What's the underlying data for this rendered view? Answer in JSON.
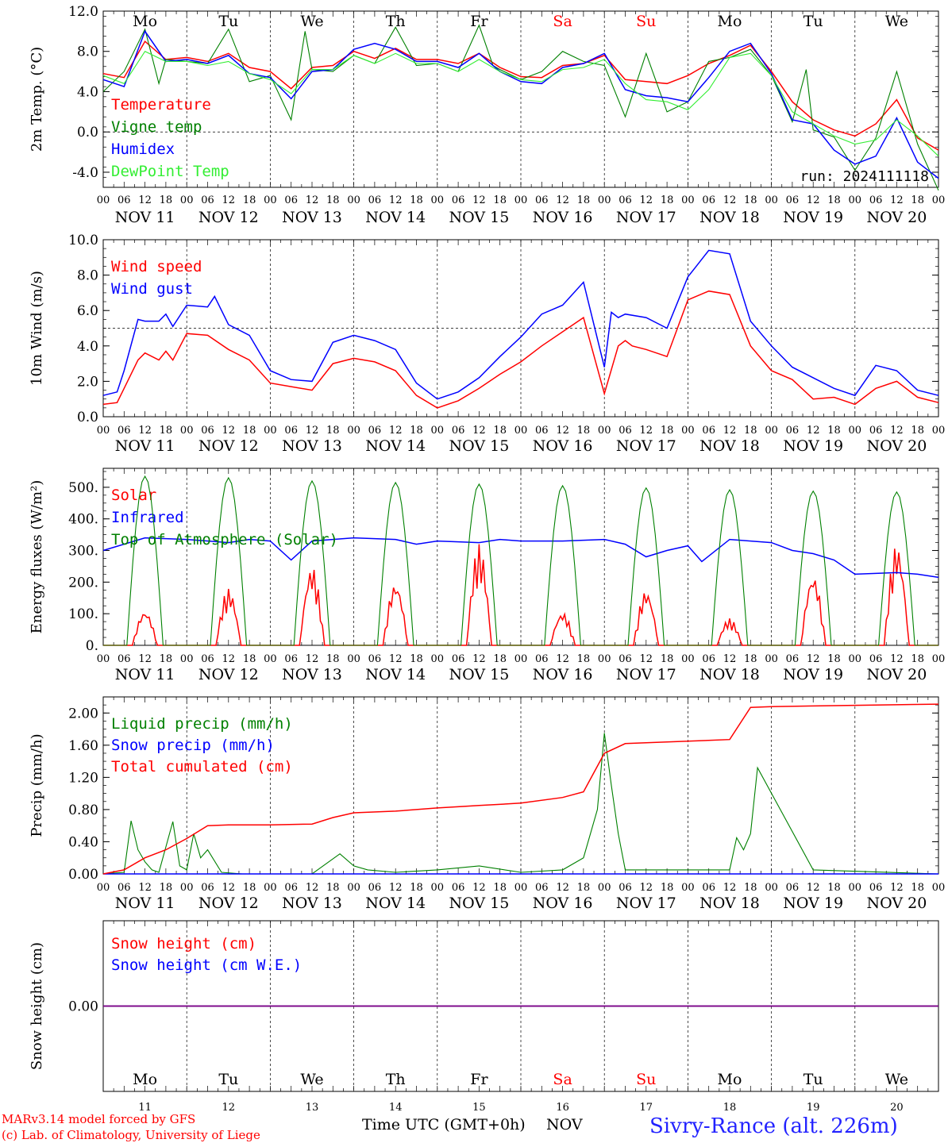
{
  "days": [
    {
      "abbr": "Mo",
      "date": "NOV 11",
      "num": "11",
      "weekend": false
    },
    {
      "abbr": "Tu",
      "date": "NOV 12",
      "num": "12",
      "weekend": false
    },
    {
      "abbr": "We",
      "date": "NOV 13",
      "num": "13",
      "weekend": false
    },
    {
      "abbr": "Th",
      "date": "NOV 14",
      "num": "14",
      "weekend": false
    },
    {
      "abbr": "Fr",
      "date": "NOV 15",
      "num": "15",
      "weekend": false
    },
    {
      "abbr": "Sa",
      "date": "NOV 16",
      "num": "16",
      "weekend": true
    },
    {
      "abbr": "Su",
      "date": "NOV 17",
      "num": "17",
      "weekend": true
    },
    {
      "abbr": "Mo",
      "date": "NOV 18",
      "num": "18",
      "weekend": false
    },
    {
      "abbr": "Tu",
      "date": "NOV 19",
      "num": "19",
      "weekend": false
    },
    {
      "abbr": "We",
      "date": "NOV 20",
      "num": "20",
      "weekend": false
    }
  ],
  "hour_ticks": [
    "00",
    "06",
    "12",
    "18"
  ],
  "end_tick": "00",
  "run_label": "run: 2024111118",
  "footer": {
    "credit1": "MARv3.14 model forced by GFS",
    "credit2": "(c) Lab. of Climatology, University of Liege",
    "xlabel": "Time UTC (GMT+0h)",
    "month": "NOV",
    "station": "Sivry-Rance (alt. 226m)"
  },
  "colors": {
    "red": "#ff0000",
    "green": "#008000",
    "blue": "#0000ff",
    "lightgreen": "#33ee33",
    "purple": "#800080"
  },
  "chart_data": [
    {
      "type": "line",
      "ylabel": "2m Temp. (°C)",
      "ylim": [
        -5.5,
        12.0
      ],
      "yticks": [
        -4.0,
        0.0,
        4.0,
        8.0,
        12.0
      ],
      "ytick_labels": [
        "-4.0",
        "0.0",
        "4.0",
        "8.0",
        "12.0"
      ],
      "reference_line": 0.0,
      "x_unit": "hours since NOV 11 00 UTC",
      "series": [
        {
          "name": "Temperature",
          "color": "red",
          "x": [
            0,
            6,
            12,
            18,
            24,
            30,
            36,
            42,
            48,
            54,
            60,
            66,
            72,
            78,
            84,
            90,
            96,
            102,
            108,
            114,
            120,
            126,
            132,
            138,
            144,
            150,
            156,
            162,
            168,
            174,
            180,
            186,
            192,
            198,
            204,
            210,
            216,
            222,
            228,
            234,
            240
          ],
          "values": [
            5.8,
            5.4,
            9.0,
            7.2,
            7.4,
            7.0,
            7.8,
            6.4,
            6.0,
            4.3,
            6.4,
            6.6,
            8.0,
            7.3,
            8.3,
            7.2,
            7.2,
            6.8,
            7.8,
            6.4,
            5.5,
            5.4,
            6.6,
            6.8,
            7.6,
            5.2,
            5.0,
            4.8,
            5.6,
            6.8,
            7.6,
            8.6,
            6.0,
            3.0,
            1.2,
            0.2,
            -0.4,
            0.8,
            3.2,
            -0.6,
            -1.8
          ]
        },
        {
          "name": "Vigne temp",
          "color": "green",
          "x": [
            0,
            6,
            12,
            16,
            18,
            24,
            30,
            36,
            42,
            48,
            54,
            58,
            60,
            66,
            72,
            78,
            84,
            90,
            96,
            102,
            108,
            112,
            114,
            120,
            126,
            132,
            138,
            144,
            150,
            156,
            162,
            168,
            174,
            180,
            186,
            192,
            198,
            202,
            204,
            210,
            216,
            222,
            228,
            234,
            240
          ],
          "values": [
            4.0,
            6.0,
            10.2,
            4.8,
            7.2,
            7.0,
            6.8,
            10.2,
            5.0,
            5.6,
            1.2,
            10.0,
            6.2,
            6.0,
            7.6,
            6.8,
            10.4,
            6.6,
            6.8,
            6.0,
            10.6,
            6.6,
            6.2,
            5.2,
            6.0,
            8.0,
            7.0,
            6.6,
            1.5,
            7.8,
            2.0,
            3.0,
            7.0,
            7.4,
            8.2,
            5.6,
            1.0,
            6.2,
            0.2,
            -0.5,
            -3.8,
            -0.6,
            6.0,
            -1.2,
            -5.8
          ]
        },
        {
          "name": "Humidex",
          "color": "blue",
          "x": [
            0,
            6,
            12,
            18,
            24,
            30,
            36,
            42,
            48,
            54,
            60,
            66,
            72,
            78,
            84,
            90,
            96,
            102,
            108,
            114,
            120,
            126,
            132,
            138,
            144,
            150,
            156,
            162,
            168,
            174,
            180,
            186,
            192,
            198,
            204,
            210,
            216,
            222,
            228,
            234,
            240
          ],
          "values": [
            5.2,
            4.5,
            10.0,
            7.0,
            7.2,
            6.8,
            7.6,
            5.8,
            5.4,
            3.3,
            6.0,
            6.2,
            8.2,
            8.8,
            8.2,
            7.0,
            7.0,
            6.4,
            7.8,
            6.0,
            5.0,
            4.8,
            6.4,
            6.8,
            7.8,
            4.2,
            3.6,
            3.4,
            3.0,
            5.4,
            8.0,
            8.8,
            5.8,
            1.2,
            0.8,
            -1.8,
            -3.2,
            -2.4,
            1.4,
            -3.0,
            -4.6
          ]
        },
        {
          "name": "DewPoint Temp",
          "color": "lightgreen",
          "x": [
            0,
            6,
            12,
            18,
            24,
            30,
            36,
            42,
            48,
            54,
            60,
            66,
            72,
            78,
            84,
            90,
            96,
            102,
            108,
            114,
            120,
            126,
            132,
            138,
            144,
            150,
            156,
            162,
            168,
            174,
            180,
            186,
            192,
            198,
            204,
            210,
            216,
            222,
            228,
            234,
            240
          ],
          "values": [
            5.6,
            4.8,
            8.0,
            7.0,
            7.0,
            6.6,
            7.0,
            5.8,
            5.2,
            3.8,
            6.2,
            6.2,
            7.6,
            6.8,
            7.8,
            6.8,
            6.8,
            6.0,
            7.2,
            6.0,
            5.2,
            5.0,
            6.2,
            6.4,
            7.2,
            4.8,
            3.2,
            3.0,
            2.2,
            4.2,
            7.4,
            7.8,
            5.6,
            2.0,
            0.8,
            -0.4,
            -1.2,
            -0.8,
            1.2,
            -0.4,
            -2.4
          ]
        }
      ]
    },
    {
      "type": "line",
      "ylabel": "10m Wind (m/s)",
      "ylim": [
        0.0,
        10.0
      ],
      "yticks": [
        0.0,
        2.0,
        4.0,
        6.0,
        8.0,
        10.0
      ],
      "ytick_labels": [
        "0.0",
        "2.0",
        "4.0",
        "6.0",
        "8.0",
        "10.0"
      ],
      "reference_line": 5.0,
      "series": [
        {
          "name": "Wind speed",
          "color": "red",
          "x": [
            0,
            4,
            6,
            10,
            12,
            16,
            18,
            20,
            24,
            30,
            36,
            42,
            48,
            54,
            60,
            66,
            72,
            78,
            84,
            90,
            96,
            102,
            108,
            114,
            120,
            126,
            132,
            138,
            144,
            148,
            150,
            152,
            156,
            162,
            168,
            174,
            180,
            186,
            192,
            198,
            204,
            210,
            216,
            222,
            228,
            234,
            240
          ],
          "values": [
            0.7,
            0.8,
            1.6,
            3.2,
            3.6,
            3.2,
            3.7,
            3.2,
            4.7,
            4.6,
            3.8,
            3.2,
            1.9,
            1.7,
            1.5,
            3.0,
            3.3,
            3.1,
            2.6,
            1.2,
            0.5,
            0.9,
            1.6,
            2.4,
            3.1,
            4.0,
            4.8,
            5.6,
            1.3,
            4.0,
            4.3,
            4.0,
            3.8,
            3.4,
            6.6,
            7.1,
            6.9,
            4.0,
            2.6,
            2.1,
            1.0,
            1.1,
            0.7,
            1.6,
            2.0,
            1.1,
            0.8
          ]
        },
        {
          "name": "Wind gust",
          "color": "blue",
          "x": [
            0,
            4,
            6,
            10,
            12,
            16,
            18,
            20,
            24,
            30,
            32,
            36,
            42,
            48,
            54,
            60,
            66,
            72,
            78,
            84,
            90,
            96,
            102,
            108,
            114,
            120,
            126,
            132,
            138,
            144,
            146,
            148,
            150,
            156,
            162,
            168,
            170,
            174,
            180,
            186,
            192,
            198,
            204,
            210,
            216,
            222,
            228,
            234,
            240
          ],
          "values": [
            1.2,
            1.4,
            2.6,
            5.5,
            5.4,
            5.4,
            5.8,
            5.1,
            6.3,
            6.2,
            6.8,
            5.2,
            4.6,
            2.6,
            2.1,
            2.0,
            4.2,
            4.6,
            4.3,
            3.8,
            1.9,
            1.0,
            1.4,
            2.2,
            3.4,
            4.5,
            5.8,
            6.3,
            7.6,
            2.8,
            5.9,
            5.6,
            5.8,
            5.6,
            5.0,
            7.9,
            8.4,
            9.4,
            9.2,
            5.4,
            4.0,
            2.8,
            2.2,
            1.6,
            1.2,
            2.9,
            2.6,
            1.5,
            1.2
          ]
        }
      ]
    },
    {
      "type": "line",
      "ylabel": "Energy fluxes (W/m²)",
      "ylim": [
        0,
        560
      ],
      "yticks": [
        0,
        100,
        200,
        300,
        400,
        500
      ],
      "ytick_labels": [
        "0.",
        "100.",
        "200.",
        "300.",
        "400.",
        "500."
      ],
      "series": [
        {
          "name": "Solar",
          "color": "red",
          "peaks": [
            110,
            180,
            250,
            200,
            320,
            105,
            175,
            85,
            225,
            320
          ],
          "peak_x": [
            12,
            12,
            12,
            12,
            12,
            12,
            12,
            12,
            12,
            12
          ]
        },
        {
          "name": "Infrared",
          "color": "blue",
          "x": [
            0,
            12,
            24,
            36,
            42,
            48,
            54,
            60,
            72,
            84,
            90,
            96,
            108,
            114,
            120,
            132,
            144,
            150,
            156,
            162,
            168,
            172,
            180,
            192,
            198,
            204,
            210,
            216,
            228,
            234,
            240
          ],
          "values": [
            300,
            340,
            335,
            325,
            335,
            330,
            270,
            330,
            340,
            335,
            320,
            330,
            325,
            335,
            330,
            330,
            335,
            320,
            280,
            300,
            315,
            265,
            335,
            325,
            300,
            290,
            270,
            225,
            230,
            225,
            215
          ]
        },
        {
          "name": "Top of Atmosphere (Solar)",
          "color": "green",
          "peaks": [
            535,
            530,
            520,
            515,
            510,
            505,
            498,
            492,
            488,
            485
          ],
          "peak_x": [
            12,
            12,
            12,
            12,
            12,
            12,
            12,
            12,
            12,
            12
          ]
        }
      ]
    },
    {
      "type": "line",
      "ylabel": "Precip (mm/h)",
      "ylim": [
        0.0,
        2.2
      ],
      "yticks": [
        0.0,
        0.4,
        0.8,
        1.2,
        1.6,
        2.0
      ],
      "ytick_labels": [
        "0.00",
        "0.40",
        "0.80",
        "1.20",
        "1.60",
        "2.00"
      ],
      "series": [
        {
          "name": "Liquid precip (mm/h)",
          "color": "green",
          "x": [
            0,
            6,
            8,
            10,
            12,
            14,
            16,
            20,
            22,
            24,
            26,
            28,
            30,
            34,
            40,
            60,
            68,
            72,
            76,
            84,
            96,
            108,
            120,
            132,
            138,
            142,
            144,
            146,
            148,
            150,
            168,
            180,
            182,
            184,
            186,
            188,
            204,
            240
          ],
          "values": [
            0,
            0.02,
            0.66,
            0.3,
            0.15,
            0.05,
            0.02,
            0.65,
            0.1,
            0.05,
            0.5,
            0.2,
            0.3,
            0.02,
            0,
            0,
            0.25,
            0.1,
            0.05,
            0.02,
            0.05,
            0.1,
            0.02,
            0.05,
            0.2,
            0.8,
            1.75,
            1.1,
            0.5,
            0.05,
            0.05,
            0.05,
            0.45,
            0.3,
            0.5,
            1.32,
            0.05,
            0
          ]
        },
        {
          "name": "Snow precip (mm/h)",
          "color": "blue",
          "x": [
            0,
            240
          ],
          "values": [
            0,
            0
          ]
        },
        {
          "name": "Total cumulated (cm)",
          "color": "red",
          "x": [
            0,
            6,
            12,
            18,
            24,
            30,
            36,
            48,
            60,
            66,
            72,
            84,
            96,
            108,
            120,
            132,
            138,
            144,
            150,
            156,
            168,
            180,
            186,
            192,
            240
          ],
          "values": [
            0.0,
            0.05,
            0.2,
            0.3,
            0.44,
            0.6,
            0.61,
            0.61,
            0.62,
            0.7,
            0.76,
            0.78,
            0.82,
            0.85,
            0.88,
            0.95,
            1.02,
            1.5,
            1.62,
            1.63,
            1.65,
            1.67,
            2.07,
            2.08,
            2.11
          ]
        }
      ]
    },
    {
      "type": "line",
      "ylabel": "Snow height (cm)",
      "ylim": [
        -1.0,
        1.0
      ],
      "yticks": [
        0.0
      ],
      "ytick_labels": [
        "0.00"
      ],
      "series": [
        {
          "name": "Snow height (cm)",
          "color": "red",
          "x": [
            0,
            240
          ],
          "values": [
            0,
            0
          ]
        },
        {
          "name": "Snow height (cm W.E.)",
          "color": "blue",
          "x": [
            0,
            240
          ],
          "values": [
            0,
            0
          ]
        }
      ]
    }
  ]
}
